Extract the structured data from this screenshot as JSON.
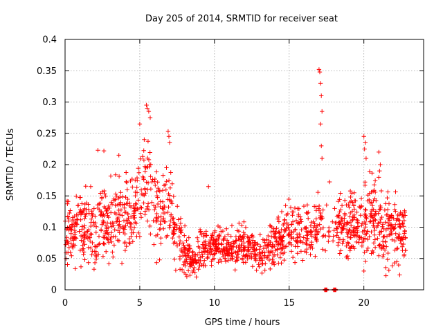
{
  "chart_data": {
    "type": "scatter",
    "title": "Day 205 of 2014, SRMTID for receiver seat",
    "xlabel": "GPS time / hours",
    "ylabel": "SRMTID / TECUs",
    "xlim": [
      0,
      24
    ],
    "ylim": [
      0,
      0.4
    ],
    "x_ticks": [
      0,
      5,
      10,
      15,
      20
    ],
    "x_tick_labels": [
      "0",
      "5",
      "10",
      "15",
      "20"
    ],
    "y_ticks": [
      0,
      0.05,
      0.1,
      0.15,
      0.2,
      0.25,
      0.3,
      0.35,
      0.4
    ],
    "y_tick_labels": [
      "0",
      "0.05",
      "0.1",
      "0.15",
      "0.2",
      "0.25",
      "0.3",
      "0.35",
      "0.4"
    ],
    "grid": true,
    "marker": "+",
    "series_color": "#ff0000",
    "envelope": {
      "x": [
        0,
        0.5,
        1.0,
        1.5,
        2.0,
        2.5,
        3.0,
        3.5,
        4.0,
        4.5,
        5.0,
        5.5,
        6.0,
        6.5,
        7.0,
        7.5,
        8.0,
        8.5,
        9.0,
        9.5,
        10.0,
        10.5,
        11.0,
        11.5,
        12.0,
        12.5,
        13.0,
        13.5,
        14.0,
        14.5,
        15.0,
        15.5,
        16.0,
        16.5,
        17.0,
        17.5,
        18.0,
        18.5,
        19.0,
        19.5,
        20.0,
        20.5,
        21.0,
        21.5,
        22.0,
        22.5,
        22.8
      ],
      "mean": [
        0.095,
        0.09,
        0.1,
        0.105,
        0.09,
        0.11,
        0.1,
        0.12,
        0.12,
        0.125,
        0.15,
        0.17,
        0.13,
        0.12,
        0.13,
        0.09,
        0.065,
        0.05,
        0.055,
        0.07,
        0.075,
        0.07,
        0.065,
        0.065,
        0.07,
        0.065,
        0.06,
        0.065,
        0.075,
        0.08,
        0.09,
        0.09,
        0.095,
        0.095,
        0.11,
        0.1,
        0.11,
        0.1,
        0.1,
        0.105,
        0.11,
        0.12,
        0.11,
        0.09,
        0.095,
        0.09,
        0.085
      ],
      "spread": [
        0.035,
        0.035,
        0.035,
        0.035,
        0.04,
        0.04,
        0.04,
        0.04,
        0.04,
        0.04,
        0.045,
        0.05,
        0.045,
        0.04,
        0.04,
        0.03,
        0.025,
        0.02,
        0.02,
        0.02,
        0.02,
        0.02,
        0.02,
        0.02,
        0.02,
        0.02,
        0.02,
        0.02,
        0.025,
        0.025,
        0.025,
        0.03,
        0.03,
        0.03,
        0.04,
        0.035,
        0.035,
        0.035,
        0.035,
        0.035,
        0.04,
        0.04,
        0.04,
        0.035,
        0.035,
        0.035,
        0.03
      ],
      "sample_count": 1600,
      "seed": 205
    },
    "peak_points": [
      {
        "x": 2.2,
        "y": 0.223
      },
      {
        "x": 2.6,
        "y": 0.222
      },
      {
        "x": 3.6,
        "y": 0.215
      },
      {
        "x": 5.0,
        "y": 0.265
      },
      {
        "x": 5.3,
        "y": 0.24
      },
      {
        "x": 5.45,
        "y": 0.295
      },
      {
        "x": 5.5,
        "y": 0.29
      },
      {
        "x": 5.6,
        "y": 0.285
      },
      {
        "x": 5.7,
        "y": 0.275
      },
      {
        "x": 6.9,
        "y": 0.253
      },
      {
        "x": 6.95,
        "y": 0.245
      },
      {
        "x": 7.0,
        "y": 0.235
      },
      {
        "x": 17.0,
        "y": 0.352
      },
      {
        "x": 17.05,
        "y": 0.348
      },
      {
        "x": 17.1,
        "y": 0.33
      },
      {
        "x": 17.15,
        "y": 0.31
      },
      {
        "x": 17.2,
        "y": 0.285
      },
      {
        "x": 17.1,
        "y": 0.265
      },
      {
        "x": 17.15,
        "y": 0.23
      },
      {
        "x": 17.2,
        "y": 0.21
      },
      {
        "x": 20.0,
        "y": 0.245
      },
      {
        "x": 20.1,
        "y": 0.235
      },
      {
        "x": 20.05,
        "y": 0.225
      },
      {
        "x": 20.15,
        "y": 0.21
      },
      {
        "x": 21.0,
        "y": 0.22
      },
      {
        "x": 21.1,
        "y": 0.2
      },
      {
        "x": 21.05,
        "y": 0.19
      },
      {
        "x": 9.6,
        "y": 0.165
      },
      {
        "x": 20.0,
        "y": 0.03
      }
    ],
    "zero_points": [
      {
        "x": 17.4,
        "y": 0.0
      },
      {
        "x": 17.5,
        "y": 0.0
      },
      {
        "x": 18.0,
        "y": 0.0
      },
      {
        "x": 18.1,
        "y": 0.0
      }
    ]
  }
}
